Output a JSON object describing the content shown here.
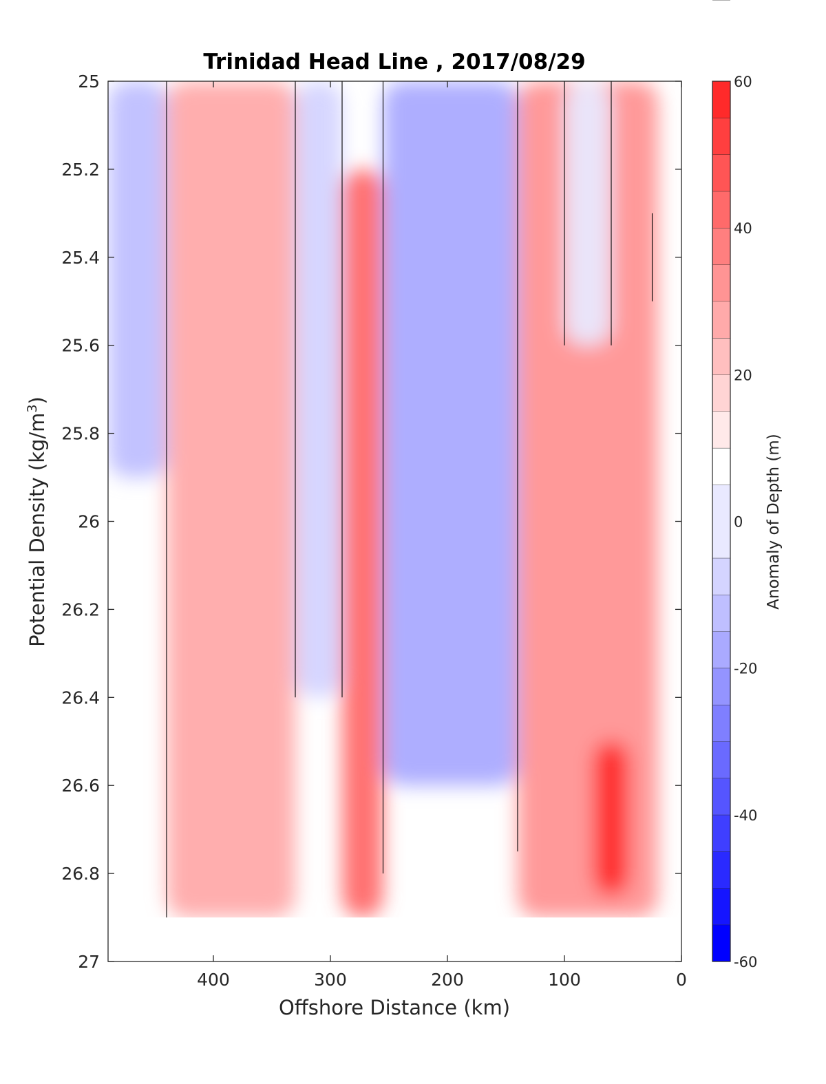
{
  "chart_data": {
    "type": "heatmap",
    "subtype": "filled-contour",
    "title": "Trinidad Head Line , 2017/08/29",
    "xlabel": "Offshore Distance (km)",
    "ylabel_prefix": "Potential Density (kg/m",
    "ylabel_sup": "3",
    "ylabel_suffix": ")",
    "xlim": [
      490,
      0
    ],
    "x_reversed": true,
    "ylim": [
      25,
      27
    ],
    "y_reversed": true,
    "xticks": [
      400,
      300,
      200,
      100,
      0
    ],
    "xtick_labels": [
      "400",
      "300",
      "200",
      "100",
      "0"
    ],
    "yticks": [
      25,
      25.2,
      25.4,
      25.6,
      25.8,
      26,
      26.2,
      26.4,
      26.6,
      26.8,
      27
    ],
    "ytick_labels": [
      "25",
      "25.2",
      "25.4",
      "25.6",
      "25.8",
      "26",
      "26.2",
      "26.4",
      "26.6",
      "26.8",
      "27"
    ],
    "colorbar": {
      "label": "Anomaly of Depth (m)",
      "range": [
        -60,
        60
      ],
      "ticks": [
        60,
        40,
        20,
        0,
        -20,
        -40,
        -60
      ],
      "tick_labels": [
        "60",
        "40",
        "20",
        "0",
        "-20",
        "-40",
        "-60"
      ],
      "levels": [
        -60,
        -55,
        -50,
        -45,
        -40,
        -35,
        -30,
        -25,
        -20,
        -15,
        -10,
        -5,
        5,
        10,
        15,
        20,
        25,
        30,
        35,
        40,
        45,
        50,
        55,
        60
      ],
      "colors": [
        "#0000ff",
        "#1515ff",
        "#2a2aff",
        "#3f3fff",
        "#5555ff",
        "#6a6aff",
        "#7f7fff",
        "#9494ff",
        "#aaaaff",
        "#bfbfff",
        "#d4d4ff",
        "#e9e9ff",
        "#ffffff",
        "#ffe9e9",
        "#ffd4d4",
        "#ffbfbf",
        "#ffaaaa",
        "#ff9494",
        "#ff7f7f",
        "#ff6a6a",
        "#ff5555",
        "#ff3f3f",
        "#ff2a2a",
        "#ff1515"
      ]
    },
    "zero_contour_color": "#000000",
    "no_data_below_density": 26.9,
    "features": [
      {
        "x_range": [
          490,
          440
        ],
        "y_range": [
          25,
          25.9
        ],
        "approx_anomaly": -15
      },
      {
        "x_range": [
          440,
          330
        ],
        "y_range": [
          25,
          26.9
        ],
        "approx_anomaly": 25
      },
      {
        "x_range": [
          330,
          290
        ],
        "y_range": [
          25,
          26.4
        ],
        "approx_anomaly": -8
      },
      {
        "x_range": [
          290,
          255
        ],
        "y_range": [
          25.2,
          26.9
        ],
        "approx_anomaly": 40
      },
      {
        "x_range": [
          255,
          140
        ],
        "y_range": [
          25,
          26.6
        ],
        "approx_anomaly": -20
      },
      {
        "x_range": [
          140,
          20
        ],
        "y_range": [
          25,
          26.9
        ],
        "approx_anomaly": 30
      },
      {
        "x_range": [
          100,
          60
        ],
        "y_range": [
          25,
          25.6
        ],
        "approx_anomaly": -5
      },
      {
        "x_range": [
          75,
          45
        ],
        "y_range": [
          26.5,
          26.85
        ],
        "approx_anomaly": 58
      }
    ]
  }
}
